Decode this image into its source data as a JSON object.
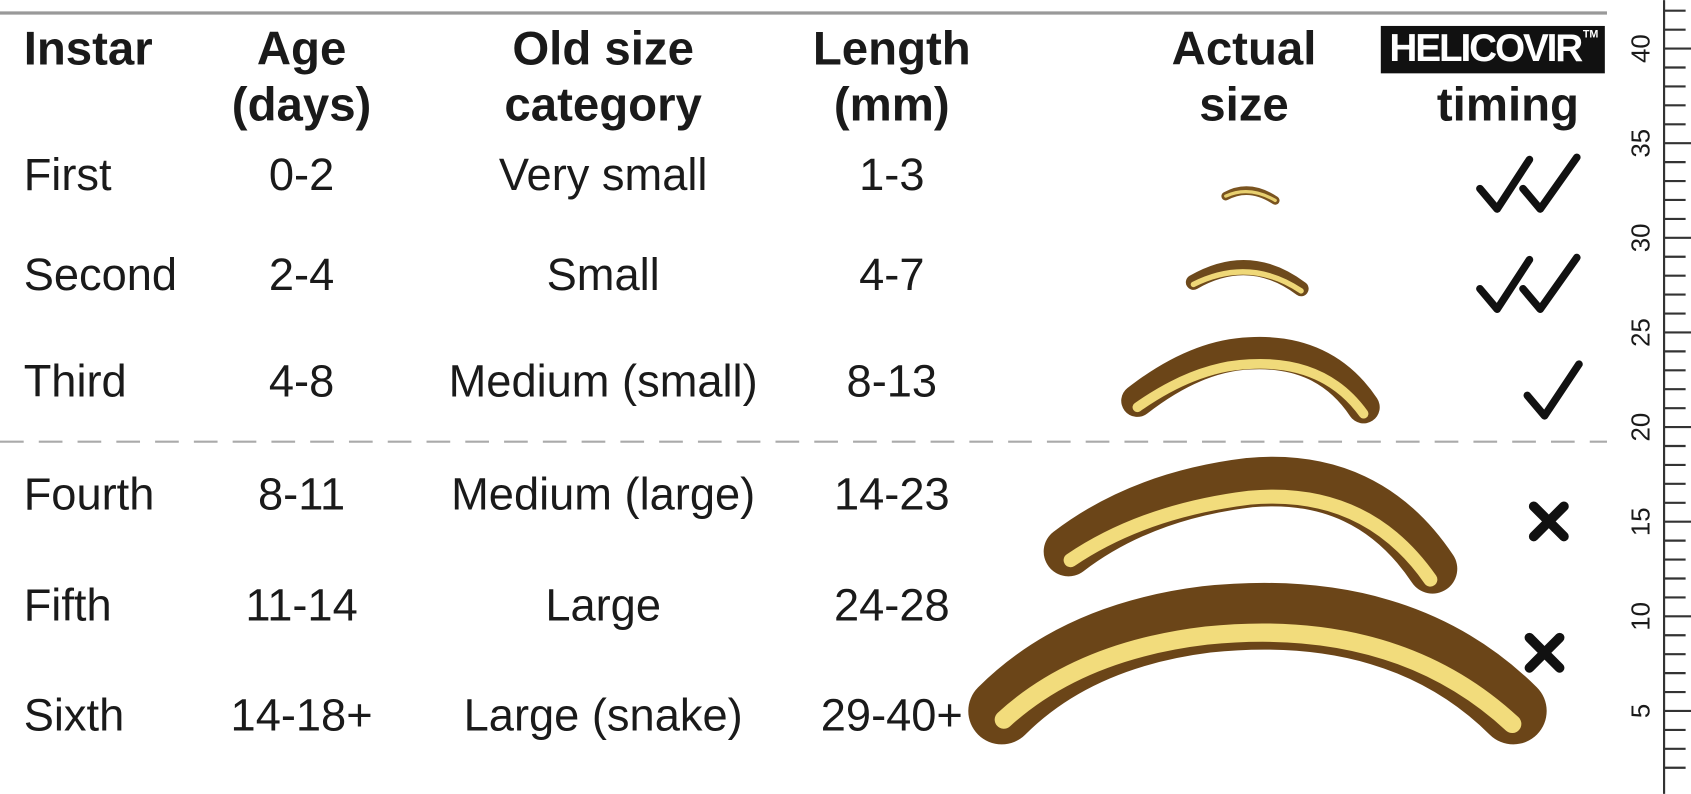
{
  "table": {
    "headers": [
      [
        "Instar"
      ],
      [
        "Age",
        "(days)"
      ],
      [
        "Old size",
        "category"
      ],
      [
        "Length",
        "(mm)"
      ],
      [
        "Actual",
        "size"
      ],
      [
        "timing"
      ]
    ],
    "logo": {
      "brand": "HELICOVIR",
      "mark": "TM"
    },
    "rows": [
      [
        "First",
        "0-2",
        "Very small",
        "1-3"
      ],
      [
        "Second",
        "2-4",
        "Small",
        "4-7"
      ],
      [
        "Third",
        "4-8",
        "Medium (small)",
        "8-13"
      ],
      [
        "Fourth",
        "8-11",
        "Medium (large)",
        "14-23"
      ],
      [
        "Fifth",
        "11-14",
        "Large",
        "24-28"
      ],
      [
        "Sixth",
        "14-18+",
        "Large (snake)",
        "29-40+"
      ]
    ]
  },
  "ruler": {
    "labels": [
      "40",
      "35",
      "30",
      "25",
      "20",
      "15",
      "10",
      "5"
    ]
  }
}
